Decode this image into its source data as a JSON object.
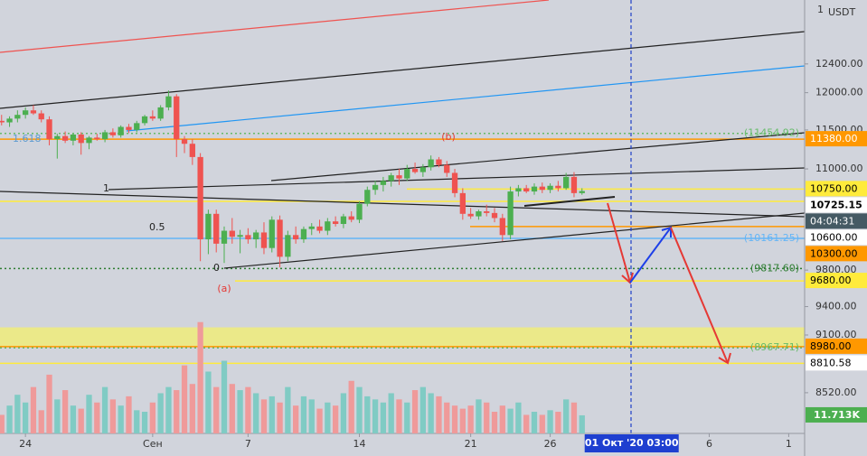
{
  "chart_data": {
    "type": "candlestick",
    "currency": "USDT",
    "axis_top_label": "1",
    "log_scale": true,
    "xlim": [
      -1.6,
      49
    ],
    "ylim": [
      8133,
      13339
    ],
    "xticks": [
      {
        "value": 0,
        "label": "24"
      },
      {
        "value": 8,
        "label": "Сен"
      },
      {
        "value": 14,
        "label": "7"
      },
      {
        "value": 21,
        "label": "14"
      },
      {
        "value": 28,
        "label": "21"
      },
      {
        "value": 33,
        "label": "26"
      },
      {
        "value": 43,
        "label": "6"
      },
      {
        "value": 48,
        "label": "1"
      }
    ],
    "yticks": [
      {
        "value": 12400,
        "label": "12400.00"
      },
      {
        "value": 12000,
        "label": "12000.00"
      },
      {
        "value": 11500,
        "label": "11500.00"
      },
      {
        "value": 11000,
        "label": "11000.00"
      },
      {
        "value": 9800,
        "label": "9800.00"
      },
      {
        "value": 9400,
        "label": "9400.00"
      },
      {
        "value": 9100,
        "label": "9100.00"
      },
      {
        "value": 8520,
        "label": "8520.00"
      }
    ],
    "up_color": "#4caf50",
    "down_color": "#ef5350",
    "x": [
      -1.5,
      -1,
      -0.5,
      0,
      0.5,
      1,
      1.5,
      2,
      2.5,
      3,
      3.5,
      4,
      4.5,
      5,
      5.5,
      6,
      6.5,
      7,
      7.5,
      8,
      8.5,
      9,
      9.5,
      10,
      10.5,
      11,
      11.5,
      12,
      12.5,
      13,
      13.5,
      14,
      14.5,
      15,
      15.5,
      16,
      16.5,
      17,
      17.5,
      18,
      18.5,
      19,
      19.5,
      20,
      20.5,
      21,
      21.5,
      22,
      22.5,
      23,
      23.5,
      24,
      24.5,
      25,
      25.5,
      26,
      26.5,
      27,
      27.5,
      28,
      28.5,
      29,
      29.5,
      30,
      30.5,
      31,
      31.5,
      32,
      32.5,
      33,
      33.5,
      34,
      34.5,
      35
    ],
    "open": [
      11620,
      11600,
      11650,
      11700,
      11760,
      11720,
      11640,
      11380,
      11420,
      11360,
      11440,
      11330,
      11400,
      11380,
      11470,
      11430,
      11540,
      11500,
      11590,
      11680,
      11650,
      11800,
      11950,
      11380,
      11320,
      11150,
      10150,
      10450,
      10100,
      10250,
      10180,
      10200,
      10150,
      10230,
      10050,
      10380,
      9950,
      10200,
      10150,
      10270,
      10300,
      10250,
      10360,
      10330,
      10420,
      10380,
      10570,
      10740,
      10800,
      10850,
      10920,
      10880,
      11000,
      10960,
      11020,
      11120,
      11050,
      10950,
      10700,
      10450,
      10420,
      10480,
      10460,
      10400,
      10200,
      10720,
      10760,
      10720,
      10780,
      10740,
      10790,
      10760,
      10900,
      10700
    ],
    "high": [
      11700,
      11680,
      11760,
      11800,
      11830,
      11760,
      11680,
      11450,
      11480,
      11450,
      11470,
      11420,
      11450,
      11500,
      11520,
      11560,
      11580,
      11620,
      11700,
      11760,
      11830,
      12030,
      11980,
      11420,
      11380,
      11200,
      10500,
      10500,
      10300,
      10400,
      10260,
      10280,
      10260,
      10350,
      10420,
      10430,
      10250,
      10300,
      10300,
      10340,
      10380,
      10400,
      10420,
      10450,
      10480,
      10600,
      10780,
      10850,
      10900,
      10950,
      11000,
      11050,
      11080,
      11060,
      11170,
      11150,
      11100,
      11000,
      10760,
      10520,
      10500,
      10560,
      10520,
      10450,
      10780,
      10800,
      10800,
      10820,
      10830,
      10820,
      10850,
      10950,
      10960,
      10760
    ],
    "low": [
      11560,
      11540,
      11600,
      11650,
      11700,
      11600,
      11300,
      11130,
      11330,
      11300,
      11180,
      11250,
      11360,
      11340,
      11400,
      11400,
      11460,
      11470,
      11560,
      11620,
      11620,
      11760,
      11150,
      11200,
      11050,
      9900,
      9980,
      10000,
      9880,
      10100,
      9990,
      10100,
      10050,
      9980,
      10000,
      9830,
      9900,
      10100,
      10110,
      10200,
      10220,
      10200,
      10300,
      10280,
      10350,
      10340,
      10540,
      10680,
      10720,
      10780,
      10800,
      10850,
      10940,
      10900,
      10980,
      11020,
      10900,
      10650,
      10380,
      10390,
      10380,
      10420,
      10350,
      10130,
      10150,
      10660,
      10700,
      10680,
      10700,
      10700,
      10720,
      10740,
      10650,
      10680
    ],
    "close": [
      11600,
      11650,
      11700,
      11760,
      11720,
      11640,
      11380,
      11420,
      11360,
      11440,
      11330,
      11400,
      11380,
      11470,
      11430,
      11540,
      11500,
      11590,
      11680,
      11650,
      11800,
      11950,
      11380,
      11320,
      11150,
      10150,
      10450,
      10100,
      10250,
      10180,
      10200,
      10150,
      10230,
      10050,
      10380,
      9950,
      10200,
      10150,
      10270,
      10300,
      10250,
      10360,
      10330,
      10420,
      10380,
      10570,
      10740,
      10800,
      10850,
      10920,
      10880,
      11000,
      10960,
      11020,
      11120,
      11050,
      10950,
      10700,
      10450,
      10420,
      10480,
      10460,
      10400,
      10200,
      10720,
      10760,
      10720,
      10780,
      10740,
      10790,
      10760,
      10900,
      10700,
      10725.15
    ],
    "countdown": "04:04:31",
    "volume": {
      "ylim": [
        0,
        80000
      ],
      "up_color": "#80cbc4",
      "down_color": "#ef9a9a",
      "last_label": "11.713K",
      "values": [
        12000,
        18000,
        25000,
        20000,
        30000,
        15000,
        38000,
        22000,
        28000,
        18000,
        16000,
        25000,
        20000,
        30000,
        22000,
        18000,
        24000,
        15000,
        14000,
        20000,
        26000,
        30000,
        28000,
        44000,
        32000,
        72000,
        40000,
        30000,
        47000,
        32000,
        28000,
        30000,
        26000,
        22000,
        24000,
        20000,
        30000,
        18000,
        24000,
        22000,
        16000,
        20000,
        18000,
        26000,
        34000,
        30000,
        24000,
        22000,
        20000,
        26000,
        22000,
        20000,
        28000,
        30000,
        26000,
        24000,
        20000,
        18000,
        16000,
        18000,
        22000,
        20000,
        14000,
        18000,
        16000,
        20000,
        12000,
        14000,
        12000,
        15000,
        14000,
        22000,
        20000,
        11713
      ]
    },
    "levels": [
      {
        "value": 11454.92,
        "label": "(11454.92)",
        "color": "#66bb6a"
      },
      {
        "value": 11380,
        "label": "11380.00",
        "color": "#ff9800"
      },
      {
        "value": 10750,
        "label": "10750.00",
        "color": "#ffeb3b"
      },
      {
        "value": 10600,
        "label": "10600.00",
        "color": "#ffeb3b"
      },
      {
        "value": 10300,
        "label": "10300.00",
        "color": "#ff9800"
      },
      {
        "value": 10161.25,
        "label": "(10161.25)",
        "color": "#64b5f6"
      },
      {
        "value": 9817.6,
        "label": "(9817.60)",
        "color": "#2e7d32"
      },
      {
        "value": 9680,
        "label": "9680.00",
        "color": "#ffeb3b"
      },
      {
        "value": 8980,
        "label": "8980.00",
        "color": "#ff9800"
      },
      {
        "value": 8967.71,
        "label": "(8967.71)",
        "color": "#66bb6a"
      },
      {
        "value": 8810.58,
        "label": "8810.58",
        "color": "#ffeb3b"
      }
    ],
    "zone": {
      "from": 8980,
      "to": 9180,
      "color": "#f0ec7a"
    },
    "crosshair": {
      "x": 38.125,
      "label": "01 Окт '20  03:00"
    },
    "annotations": {
      "fib_1618": "1.618",
      "fib_1": "1",
      "fib_05": "0.5",
      "fib_0": "0",
      "wave_a": "(a)",
      "wave_b": "(b)"
    }
  }
}
